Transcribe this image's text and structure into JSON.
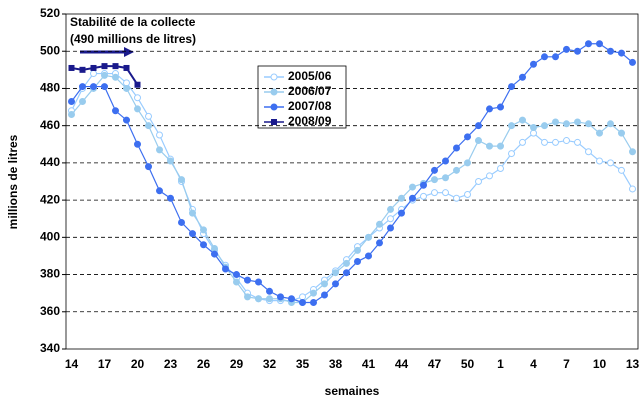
{
  "chart_data": {
    "type": "line",
    "annotation": [
      "Stabilité de la collecte",
      "(490 millions de litres)"
    ],
    "x_label": "semaines",
    "y_label": "millions de litres",
    "categories": [
      "14",
      null,
      null,
      "17",
      null,
      null,
      "20",
      null,
      null,
      "23",
      null,
      null,
      "26",
      null,
      null,
      "29",
      null,
      null,
      "32",
      null,
      null,
      "35",
      null,
      null,
      "38",
      null,
      null,
      "41",
      null,
      null,
      "44",
      null,
      null,
      "47",
      null,
      null,
      "50",
      null,
      null,
      "1",
      null,
      null,
      "4",
      null,
      null,
      "7",
      null,
      null,
      "10",
      null,
      null,
      "13"
    ],
    "ylim": [
      340,
      520
    ],
    "yticks": [
      340,
      360,
      380,
      400,
      420,
      440,
      460,
      480,
      500,
      520
    ],
    "grid": true,
    "series": [
      {
        "name": "2005/06",
        "color": "#99ccff",
        "marker": "circle-open",
        "values": [
          468,
          480,
          488,
          488,
          488,
          483,
          475,
          465,
          455,
          442,
          430,
          415,
          402,
          393,
          385,
          378,
          370,
          367,
          366,
          366,
          366,
          368,
          372,
          377,
          382,
          388,
          395,
          400,
          405,
          410,
          415,
          420,
          422,
          424,
          424,
          421,
          423,
          430,
          433,
          437,
          445,
          451,
          456,
          451,
          451,
          452,
          451,
          446,
          441,
          440,
          436,
          426
        ]
      },
      {
        "name": "2006/07",
        "color": "#99ccee",
        "marker": "circle",
        "values": [
          466,
          473,
          480,
          487,
          486,
          480,
          469,
          460,
          447,
          441,
          431,
          413,
          404,
          394,
          384,
          376,
          368,
          367,
          367,
          367,
          365,
          365,
          370,
          375,
          381,
          386,
          393,
          400,
          407,
          415,
          421,
          427,
          429,
          431,
          432,
          436,
          440,
          452,
          449,
          449,
          460,
          463,
          459,
          460,
          462,
          461,
          462,
          461,
          456,
          461,
          456,
          446
        ]
      },
      {
        "name": "2007/08",
        "color": "#3d6ff0",
        "marker": "circle",
        "values": [
          473,
          481,
          481,
          481,
          468,
          463,
          450,
          438,
          425,
          421,
          408,
          402,
          396,
          391,
          383,
          380,
          377,
          376,
          371,
          368,
          367,
          365,
          365,
          369,
          375,
          381,
          387,
          390,
          397,
          405,
          413,
          421,
          428,
          436,
          441,
          448,
          454,
          460,
          469,
          470,
          481,
          486,
          493,
          497,
          497,
          501,
          500,
          504,
          504,
          500,
          499,
          494
        ]
      },
      {
        "name": "2008/09",
        "color": "#1a1a8c",
        "marker": "square",
        "values": [
          491,
          490,
          491,
          492,
          492,
          491,
          482,
          null,
          null,
          null,
          null,
          null,
          null,
          null,
          null,
          null,
          null,
          null,
          null,
          null,
          null,
          null,
          null,
          null,
          null,
          null,
          null,
          null,
          null,
          null,
          null,
          null,
          null,
          null,
          null,
          null,
          null,
          null,
          null,
          null,
          null,
          null,
          null,
          null,
          null,
          null,
          null,
          null,
          null,
          null,
          null,
          null
        ]
      }
    ]
  }
}
